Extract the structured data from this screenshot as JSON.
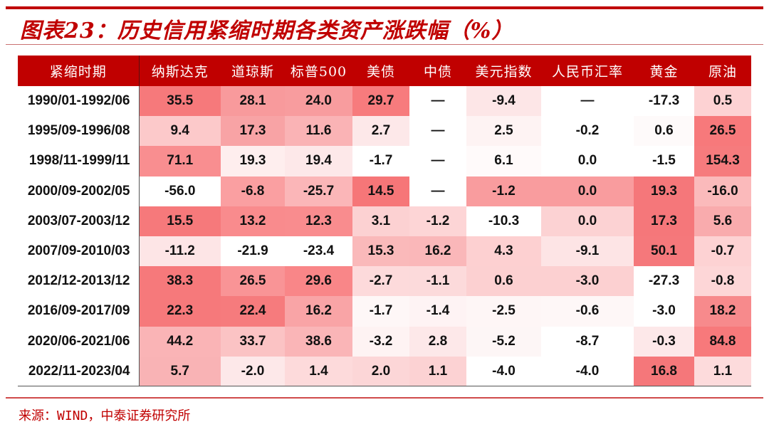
{
  "title": "图表23：历史信用紧缩时期各类资产涨跌幅（%）",
  "source": "来源：WIND，中泰证券研究所",
  "table": {
    "columns": [
      "紧缩时期",
      "纳斯达克",
      "道琼斯",
      "标普500",
      "美债",
      "中债",
      "美元指数",
      "人民币汇率",
      "黄金",
      "原油"
    ],
    "rows": [
      [
        "1990/01-1992/06",
        "35.5",
        "28.1",
        "24.0",
        "29.7",
        "—",
        "-9.4",
        "—",
        "-17.3",
        "0.5"
      ],
      [
        "1995/09-1996/08",
        "9.4",
        "17.3",
        "11.6",
        "2.7",
        "—",
        "2.5",
        "-0.2",
        "0.6",
        "26.5"
      ],
      [
        "1998/11-1999/11",
        "71.1",
        "19.3",
        "19.4",
        "-1.7",
        "—",
        "6.1",
        "0.0",
        "-1.5",
        "154.3"
      ],
      [
        "2000/09-2002/05",
        "-56.0",
        "-6.8",
        "-25.7",
        "14.5",
        "—",
        "-1.2",
        "0.0",
        "19.3",
        "-16.0"
      ],
      [
        "2003/07-2003/12",
        "15.5",
        "13.2",
        "12.3",
        "3.1",
        "-1.2",
        "-10.3",
        "0.0",
        "17.3",
        "5.6"
      ],
      [
        "2007/09-2010/03",
        "-11.2",
        "-21.9",
        "-23.4",
        "15.3",
        "16.2",
        "4.3",
        "-9.1",
        "50.1",
        "-0.7"
      ],
      [
        "2012/12-2013/12",
        "38.3",
        "26.5",
        "29.6",
        "-2.7",
        "-1.1",
        "0.6",
        "-3.0",
        "-27.3",
        "-0.8"
      ],
      [
        "2016/09-2017/09",
        "22.3",
        "22.4",
        "16.2",
        "-1.7",
        "-1.4",
        "-2.5",
        "-0.6",
        "-3.0",
        "18.2"
      ],
      [
        "2020/06-2021/06",
        "44.2",
        "33.7",
        "38.6",
        "-3.2",
        "2.8",
        "-5.2",
        "-8.7",
        "-0.3",
        "84.8"
      ],
      [
        "2022/11-2023/04",
        "5.7",
        "-2.0",
        "1.4",
        "2.0",
        "1.1",
        "-4.0",
        "-4.0",
        "16.8",
        "1.1"
      ]
    ],
    "cell_colors": [
      [
        "#f6797b",
        "#f89a9c",
        "#f89c9e",
        "#f77b7d",
        "#ffffff",
        "#fde6e7",
        "#ffffff",
        "#ffffff",
        "#fdd2d3"
      ],
      [
        "#fcc9ca",
        "#f8a3a5",
        "#fab3b5",
        "#fde8e9",
        "#ffffff",
        "#fef3f3",
        "#ffffff",
        "#fefafa",
        "#f7797b"
      ],
      [
        "#f98e90",
        "#feeeee",
        "#fde8e9",
        "#ffffff",
        "#ffffff",
        "#fffafa",
        "#ffffff",
        "#ffffff",
        "#f67b7d"
      ],
      [
        "#ffffff",
        "#fa9fa1",
        "#fbb6b8",
        "#f67678",
        "#ffffff",
        "#f99c9e",
        "#f99c9e",
        "#f5777a",
        "#fbbabb"
      ],
      [
        "#f6797b",
        "#f98b8d",
        "#f98c8e",
        "#fcd1d2",
        "#fdd5d6",
        "#ffffff",
        "#fcd2d3",
        "#f5777a",
        "#f9abad"
      ],
      [
        "#fde5e6",
        "#ffffff",
        "#ffffff",
        "#fab9ba",
        "#fab7b9",
        "#fdd0d1",
        "#fde4e5",
        "#f5787b",
        "#fdd2d3"
      ],
      [
        "#f6797b",
        "#f99496",
        "#f98688",
        "#fddadb",
        "#fcdadb",
        "#fcd0d1",
        "#fcd0d1",
        "#ffffff",
        "#fdd6d7"
      ],
      [
        "#f6797b",
        "#f67b7d",
        "#f9a4a6",
        "#fef7f7",
        "#fef3f4",
        "#fef6f6",
        "#fef7f7",
        "#ffffff",
        "#f78a8c"
      ],
      [
        "#fab4b6",
        "#fbc3c4",
        "#fab5b7",
        "#fef3f3",
        "#fde8e9",
        "#fdf6f6",
        "#ffffff",
        "#fde8e9",
        "#f7797b"
      ],
      [
        "#f9b3b5",
        "#fde8e9",
        "#fddadb",
        "#fcd6d7",
        "#fcd2d3",
        "#ffffff",
        "#ffffff",
        "#f5777a",
        "#fddbdc"
      ]
    ]
  },
  "colors": {
    "brand_red": "#c00000",
    "header_text": "#ffffff"
  }
}
